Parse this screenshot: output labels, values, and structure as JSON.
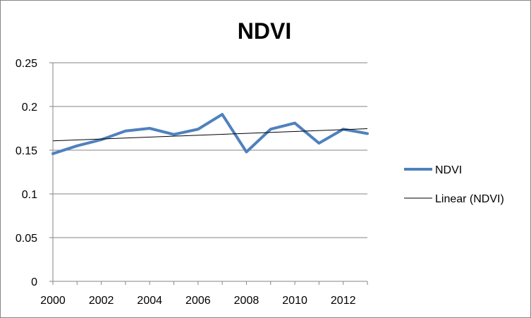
{
  "chart_data": {
    "type": "line",
    "title": "NDVI",
    "xlabel": "",
    "ylabel": "",
    "x": [
      2000,
      2001,
      2002,
      2003,
      2004,
      2005,
      2006,
      2007,
      2008,
      2009,
      2010,
      2011,
      2012,
      2013
    ],
    "xlim": [
      2000,
      2013
    ],
    "ylim": [
      0,
      0.25
    ],
    "xticks": [
      "2000",
      "2002",
      "2004",
      "2006",
      "2008",
      "2010",
      "2012"
    ],
    "yticks": [
      "0",
      "0.05",
      "0.1",
      "0.15",
      "0.2",
      "0.25"
    ],
    "grid": "horizontal",
    "legend_position": "right",
    "series": [
      {
        "name": "NDVI",
        "color": "#4F81BD",
        "values": [
          0.146,
          0.155,
          0.162,
          0.172,
          0.175,
          0.168,
          0.174,
          0.191,
          0.148,
          0.174,
          0.181,
          0.158,
          0.174,
          0.169
        ]
      },
      {
        "name": "Linear (NDVI)",
        "color": "#000000",
        "trendline": "linear"
      }
    ]
  }
}
